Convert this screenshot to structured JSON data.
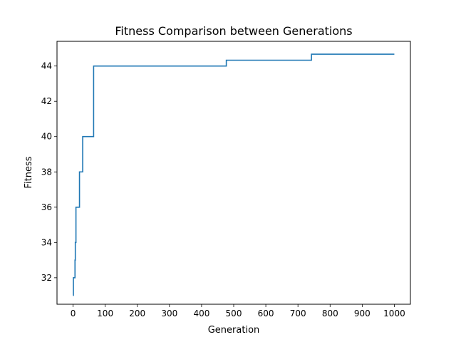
{
  "chart_data": {
    "type": "line",
    "title": "Fitness Comparison between Generations",
    "xlabel": "Generation",
    "ylabel": "Fitness",
    "xlim": [
      -50,
      1050
    ],
    "ylim": [
      30.5,
      45.4
    ],
    "grid": false,
    "legend": "none",
    "xticks": [
      0,
      100,
      200,
      300,
      400,
      500,
      600,
      700,
      800,
      900,
      1000
    ],
    "yticks": [
      32,
      34,
      36,
      38,
      40,
      42,
      44
    ],
    "colors": {
      "series": "#1f77b4",
      "axes": "#000000",
      "background": "#ffffff"
    },
    "series": [
      {
        "step": "post",
        "x": [
          0,
          1,
          6,
          7,
          9,
          20,
          30,
          64,
          477,
          742,
          1000
        ],
        "y": [
          31,
          32,
          33,
          34,
          36,
          38,
          40,
          44,
          44.33,
          44.67,
          44.67
        ]
      }
    ]
  }
}
